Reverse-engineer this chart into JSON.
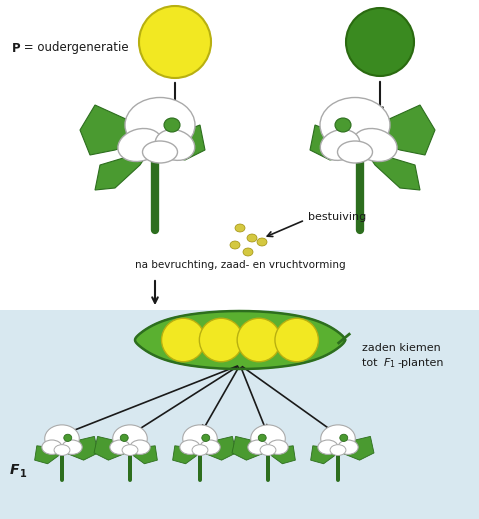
{
  "bg_color_lower": "#d8e8f0",
  "yellow_color": "#f2e822",
  "green_color": "#4a9a30",
  "dark_green": "#2d6e1e",
  "light_green": "#5ab030",
  "arrow_color": "#1a1a1a",
  "text_color": "#1a1a1a",
  "pollen_color": "#d4c840",
  "text_P_label": " = oudergeneratie",
  "text_P_bold": "P",
  "text_bestuiving": "bestuiving",
  "text_na": "na bevruchting, zaad- en vruchtvorming",
  "text_zaden": "zaden kiemen",
  "text_tot": "tot F",
  "text_F1_sub": "1",
  "text_F1_label": "F",
  "text_F1_sub2": "1",
  "figsize": [
    4.79,
    5.19
  ],
  "dpi": 100
}
